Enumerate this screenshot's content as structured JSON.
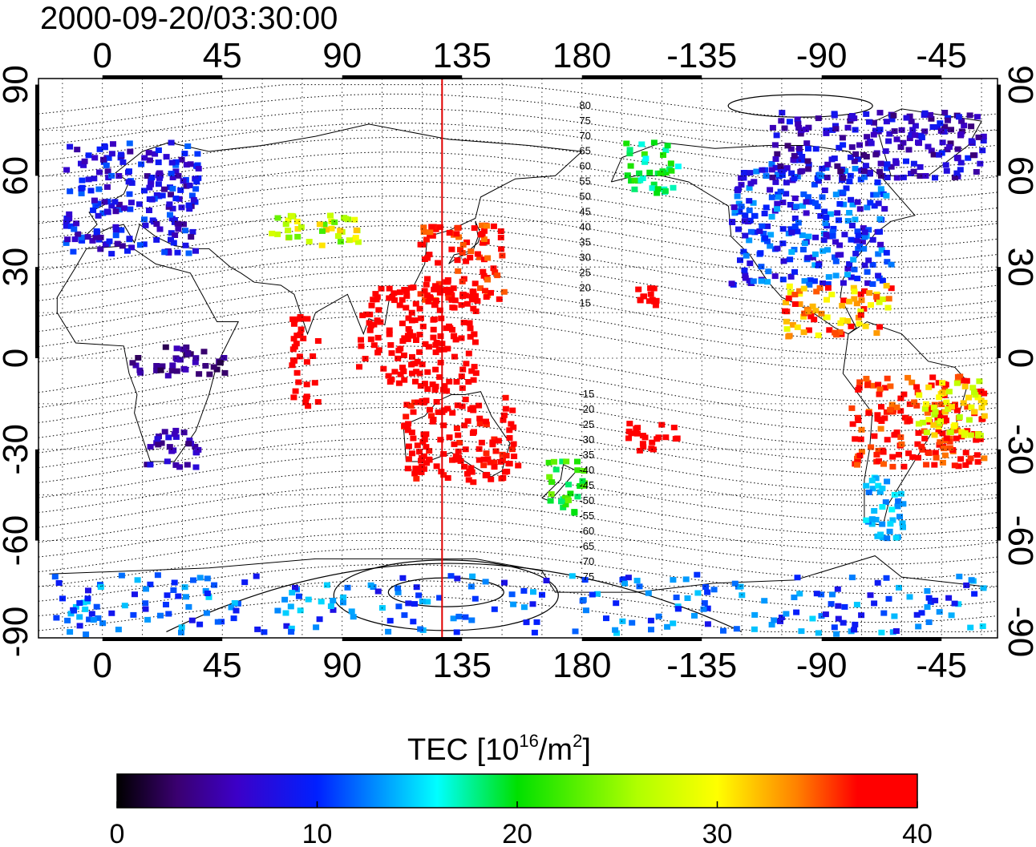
{
  "title": "2000-09-20/03:30:00",
  "map": {
    "lon_labels": [
      "0",
      "45",
      "90",
      "135",
      "180",
      "-135",
      "-90",
      "-45"
    ],
    "lon_values": [
      0,
      45,
      90,
      135,
      180,
      225,
      270,
      315
    ],
    "lat_labels": [
      "90",
      "60",
      "30",
      "0",
      "-30",
      "-60",
      "-90"
    ],
    "lat_values": [
      90,
      60,
      30,
      0,
      -30,
      -60,
      -90
    ],
    "lon_range": [
      -24,
      336
    ],
    "lat_range": [
      -92,
      92
    ],
    "meridian_marker_lon": 127.5,
    "meridian_marker_color": "#e00000",
    "contour_labels": [
      "80",
      "75",
      "70",
      "65",
      "60",
      "55",
      "50",
      "45",
      "40",
      "35",
      "30",
      "25",
      "20",
      "15",
      "-15",
      "-20",
      "-25",
      "-30",
      "-35",
      "-40",
      "-45",
      "-50",
      "-55",
      "-60",
      "-65",
      "-70",
      "-75"
    ],
    "contour_label_lats": [
      80,
      75,
      70,
      65,
      60,
      55,
      50,
      45,
      40,
      35,
      30,
      25,
      20,
      15,
      -15,
      -20,
      -25,
      -30,
      -35,
      -40,
      -45,
      -50,
      -55,
      -60,
      -65,
      -70,
      -75
    ],
    "tec_regions": [
      {
        "name": "europe",
        "lon": [
          -15,
          35
        ],
        "lat": [
          35,
          72
        ],
        "tec": [
          4,
          12
        ]
      },
      {
        "name": "north-america",
        "lon": [
          235,
          295
        ],
        "lat": [
          25,
          65
        ],
        "tec": [
          6,
          14
        ]
      },
      {
        "name": "north-america-north",
        "lon": [
          250,
          330
        ],
        "lat": [
          60,
          82
        ],
        "tec": [
          3,
          10
        ]
      },
      {
        "name": "alaska",
        "lon": [
          195,
          215
        ],
        "lat": [
          55,
          72
        ],
        "tec": [
          16,
          22
        ]
      },
      {
        "name": "japan-east-asia",
        "lon": [
          118,
          150
        ],
        "lat": [
          20,
          45
        ],
        "tec": [
          34,
          40
        ]
      },
      {
        "name": "central-asia",
        "lon": [
          60,
          95
        ],
        "lat": [
          38,
          48
        ],
        "tec": [
          22,
          32
        ]
      },
      {
        "name": "se-asia",
        "lon": [
          95,
          140
        ],
        "lat": [
          -10,
          25
        ],
        "tec": [
          38,
          40
        ]
      },
      {
        "name": "australia",
        "lon": [
          112,
          155
        ],
        "lat": [
          -40,
          -12
        ],
        "tec": [
          36,
          40
        ]
      },
      {
        "name": "new-zealand",
        "lon": [
          165,
          180
        ],
        "lat": [
          -50,
          -33
        ],
        "tec": [
          18,
          24
        ]
      },
      {
        "name": "south-america",
        "lon": [
          280,
          330
        ],
        "lat": [
          -35,
          -5
        ],
        "tec": [
          34,
          40
        ]
      },
      {
        "name": "brazil-east",
        "lon": [
          305,
          330
        ],
        "lat": [
          -25,
          -5
        ],
        "tec": [
          26,
          32
        ]
      },
      {
        "name": "central-america",
        "lon": [
          255,
          295
        ],
        "lat": [
          8,
          25
        ],
        "tec": [
          28,
          40
        ]
      },
      {
        "name": "patagonia",
        "lon": [
          285,
          300
        ],
        "lat": [
          -60,
          -38
        ],
        "tec": [
          12,
          16
        ]
      },
      {
        "name": "southern-africa",
        "lon": [
          15,
          35
        ],
        "lat": [
          -35,
          -22
        ],
        "tec": [
          3,
          8
        ]
      },
      {
        "name": "antarctica",
        "lon": [
          -20,
          330
        ],
        "lat": [
          -90,
          -70
        ],
        "tec": [
          8,
          15
        ]
      },
      {
        "name": "hawaii",
        "lon": [
          200,
          207
        ],
        "lat": [
          18,
          24
        ],
        "tec": [
          39,
          40
        ]
      },
      {
        "name": "pacific-south",
        "lon": [
          195,
          215
        ],
        "lat": [
          -30,
          -20
        ],
        "tec": [
          38,
          40
        ]
      },
      {
        "name": "indian-ocean",
        "lon": [
          70,
          80
        ],
        "lat": [
          -15,
          15
        ],
        "tec": [
          38,
          40
        ]
      },
      {
        "name": "africa-central",
        "lon": [
          10,
          45
        ],
        "lat": [
          -5,
          5
        ],
        "tec": [
          2,
          6
        ]
      }
    ]
  },
  "colorbar": {
    "title_prefix": "TEC  [10",
    "title_sup1": "16",
    "title_mid": "/m",
    "title_sup2": "2",
    "title_suffix": "]",
    "ticks": [
      "0",
      "10",
      "20",
      "30",
      "40"
    ],
    "tick_values": [
      0,
      10,
      20,
      30,
      40
    ],
    "range": [
      0,
      40
    ],
    "stops": [
      {
        "v": 0,
        "c": "#000000"
      },
      {
        "v": 3,
        "c": "#3a0070"
      },
      {
        "v": 6,
        "c": "#3c00c8"
      },
      {
        "v": 10,
        "c": "#0020ff"
      },
      {
        "v": 16,
        "c": "#00ffff"
      },
      {
        "v": 20,
        "c": "#00e000"
      },
      {
        "v": 26,
        "c": "#b0ff00"
      },
      {
        "v": 30,
        "c": "#ffff00"
      },
      {
        "v": 34,
        "c": "#ff8000"
      },
      {
        "v": 37,
        "c": "#ff0000"
      },
      {
        "v": 40,
        "c": "#ff0000"
      }
    ]
  }
}
